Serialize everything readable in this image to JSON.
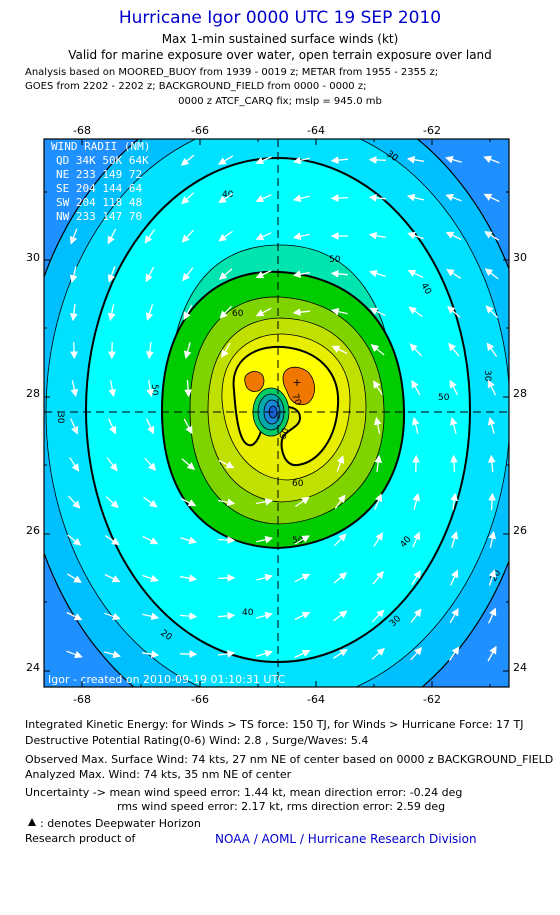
{
  "header": {
    "title": "Hurricane Igor 0000 UTC 19 SEP 2010",
    "subtitle": "Max 1-min sustained surface winds (kt)",
    "validity": "Valid for marine exposure over water, open terrain exposure over land",
    "analysis_line1": "Analysis based on MOORED_BUOY from 1939 - 0019 z; METAR from 1955 - 2355 z;",
    "analysis_line2": "GOES from 2202 - 2202 z; BACKGROUND_FIELD from 0000 - 0000 z;",
    "analysis_line3": "0000 z ATCF_CARQ fix; mslp = 945.0 mb"
  },
  "map": {
    "lon_ticks": [
      "-68",
      "-66",
      "-64",
      "-62"
    ],
    "lat_ticks": [
      "30",
      "28",
      "26",
      "24"
    ],
    "lon_range": [
      -69.0,
      -61.2
    ],
    "lat_range": [
      23.7,
      31.8
    ],
    "center": {
      "lon": -64.5,
      "lat": 27.7
    },
    "contour_labels": [
      "30",
      "40",
      "50",
      "60",
      "70",
      "50",
      "60",
      "40",
      "30",
      "20",
      "40",
      "30",
      "60",
      "50",
      "30",
      "40",
      "50",
      "20"
    ],
    "wind_radii": {
      "title": "WIND RADII (NM)",
      "header": "QD 34K 50K 64K",
      "rows": [
        "NE 233 149 72",
        "SE 204 144 64",
        "SW 204 118 48",
        "NW 233 147 70"
      ]
    },
    "created_label": "Igor - created on 2010-09-19 01:10:31 UTC",
    "colors": {
      "level_20": "#1e90ff",
      "level_30": "#00bfff",
      "level_40": "#00ffff",
      "level_45": "#00e5b0",
      "level_50": "#00cc00",
      "level_55": "#7fd400",
      "level_60": "#bfe000",
      "level_65": "#e8ee00",
      "level_70": "#ffff00",
      "level_max": "#f07800",
      "eye": "#1060d0"
    }
  },
  "footer": {
    "ike": "Integrated Kinetic Energy:  for Winds > TS force: 150 TJ,  for Winds > Hurricane Force: 17 TJ",
    "dpr": "Destructive Potential Rating(0-6)   Wind: 2.8 , Surge/Waves: 5.4",
    "observed": "Observed Max. Surface Wind: 74 kts, 27 nm NE of center based on 0000 z BACKGROUND_FIELD",
    "analyzed": "Analyzed Max. Wind: 74 kts, 35 nm NE of center",
    "uncertainty1": "Uncertainty -> mean wind speed error: 1.44 kt,   mean direction error:  -0.24 deg",
    "uncertainty2": "rms wind speed error: 2.17 kt,   rms direction error: 2.59 deg",
    "deepwater": ": denotes Deepwater Horizon",
    "research": "Research product of",
    "credit": "NOAA / AOML / Hurricane Research Division"
  }
}
